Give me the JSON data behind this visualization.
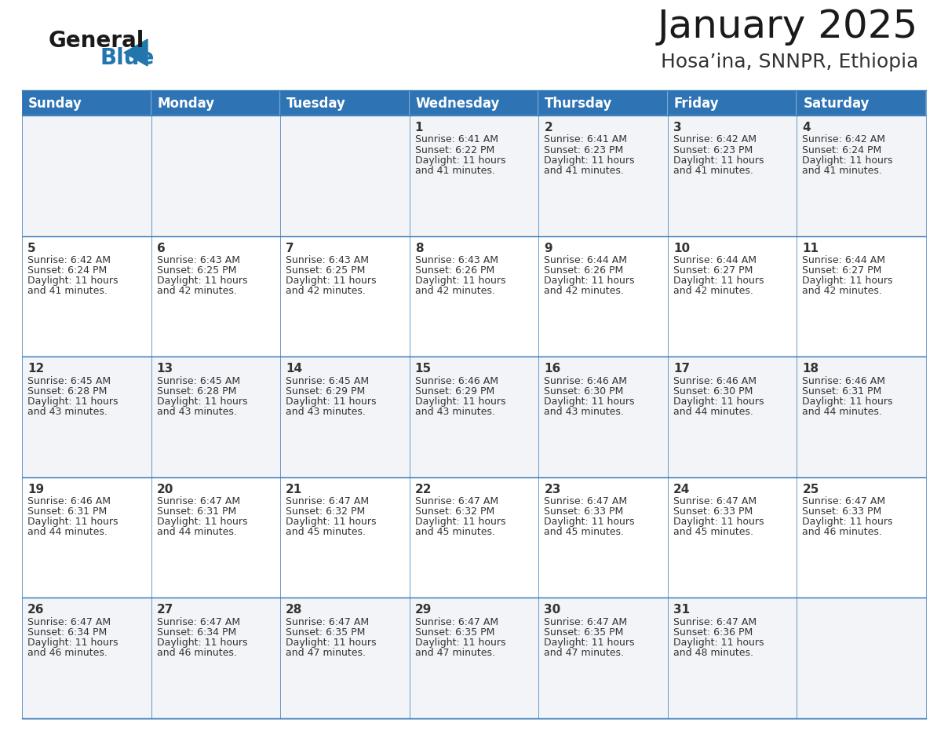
{
  "title": "January 2025",
  "subtitle": "Hosa’ina, SNNPR, Ethiopia",
  "logo_text_general": "General",
  "logo_text_blue": "Blue",
  "header_color": "#2E74B5",
  "header_text_color": "#FFFFFF",
  "cell_bg_even": "#F2F4F7",
  "cell_bg_odd": "#FFFFFF",
  "border_color": "#2E74B5",
  "text_color": "#333333",
  "days_of_week": [
    "Sunday",
    "Monday",
    "Tuesday",
    "Wednesday",
    "Thursday",
    "Friday",
    "Saturday"
  ],
  "title_fontsize": 36,
  "subtitle_fontsize": 18,
  "day_header_fontsize": 12,
  "cell_day_fontsize": 11,
  "cell_info_fontsize": 9.0,
  "calendar_data": [
    [
      {
        "day": "",
        "sunrise": "",
        "sunset": "",
        "daylight_h": "",
        "daylight_m": ""
      },
      {
        "day": "",
        "sunrise": "",
        "sunset": "",
        "daylight_h": "",
        "daylight_m": ""
      },
      {
        "day": "",
        "sunrise": "",
        "sunset": "",
        "daylight_h": "",
        "daylight_m": ""
      },
      {
        "day": "1",
        "sunrise": "6:41 AM",
        "sunset": "6:22 PM",
        "daylight_h": "11 hours",
        "daylight_m": "and 41 minutes."
      },
      {
        "day": "2",
        "sunrise": "6:41 AM",
        "sunset": "6:23 PM",
        "daylight_h": "11 hours",
        "daylight_m": "and 41 minutes."
      },
      {
        "day": "3",
        "sunrise": "6:42 AM",
        "sunset": "6:23 PM",
        "daylight_h": "11 hours",
        "daylight_m": "and 41 minutes."
      },
      {
        "day": "4",
        "sunrise": "6:42 AM",
        "sunset": "6:24 PM",
        "daylight_h": "11 hours",
        "daylight_m": "and 41 minutes."
      }
    ],
    [
      {
        "day": "5",
        "sunrise": "6:42 AM",
        "sunset": "6:24 PM",
        "daylight_h": "11 hours",
        "daylight_m": "and 41 minutes."
      },
      {
        "day": "6",
        "sunrise": "6:43 AM",
        "sunset": "6:25 PM",
        "daylight_h": "11 hours",
        "daylight_m": "and 42 minutes."
      },
      {
        "day": "7",
        "sunrise": "6:43 AM",
        "sunset": "6:25 PM",
        "daylight_h": "11 hours",
        "daylight_m": "and 42 minutes."
      },
      {
        "day": "8",
        "sunrise": "6:43 AM",
        "sunset": "6:26 PM",
        "daylight_h": "11 hours",
        "daylight_m": "and 42 minutes."
      },
      {
        "day": "9",
        "sunrise": "6:44 AM",
        "sunset": "6:26 PM",
        "daylight_h": "11 hours",
        "daylight_m": "and 42 minutes."
      },
      {
        "day": "10",
        "sunrise": "6:44 AM",
        "sunset": "6:27 PM",
        "daylight_h": "11 hours",
        "daylight_m": "and 42 minutes."
      },
      {
        "day": "11",
        "sunrise": "6:44 AM",
        "sunset": "6:27 PM",
        "daylight_h": "11 hours",
        "daylight_m": "and 42 minutes."
      }
    ],
    [
      {
        "day": "12",
        "sunrise": "6:45 AM",
        "sunset": "6:28 PM",
        "daylight_h": "11 hours",
        "daylight_m": "and 43 minutes."
      },
      {
        "day": "13",
        "sunrise": "6:45 AM",
        "sunset": "6:28 PM",
        "daylight_h": "11 hours",
        "daylight_m": "and 43 minutes."
      },
      {
        "day": "14",
        "sunrise": "6:45 AM",
        "sunset": "6:29 PM",
        "daylight_h": "11 hours",
        "daylight_m": "and 43 minutes."
      },
      {
        "day": "15",
        "sunrise": "6:46 AM",
        "sunset": "6:29 PM",
        "daylight_h": "11 hours",
        "daylight_m": "and 43 minutes."
      },
      {
        "day": "16",
        "sunrise": "6:46 AM",
        "sunset": "6:30 PM",
        "daylight_h": "11 hours",
        "daylight_m": "and 43 minutes."
      },
      {
        "day": "17",
        "sunrise": "6:46 AM",
        "sunset": "6:30 PM",
        "daylight_h": "11 hours",
        "daylight_m": "and 44 minutes."
      },
      {
        "day": "18",
        "sunrise": "6:46 AM",
        "sunset": "6:31 PM",
        "daylight_h": "11 hours",
        "daylight_m": "and 44 minutes."
      }
    ],
    [
      {
        "day": "19",
        "sunrise": "6:46 AM",
        "sunset": "6:31 PM",
        "daylight_h": "11 hours",
        "daylight_m": "and 44 minutes."
      },
      {
        "day": "20",
        "sunrise": "6:47 AM",
        "sunset": "6:31 PM",
        "daylight_h": "11 hours",
        "daylight_m": "and 44 minutes."
      },
      {
        "day": "21",
        "sunrise": "6:47 AM",
        "sunset": "6:32 PM",
        "daylight_h": "11 hours",
        "daylight_m": "and 45 minutes."
      },
      {
        "day": "22",
        "sunrise": "6:47 AM",
        "sunset": "6:32 PM",
        "daylight_h": "11 hours",
        "daylight_m": "and 45 minutes."
      },
      {
        "day": "23",
        "sunrise": "6:47 AM",
        "sunset": "6:33 PM",
        "daylight_h": "11 hours",
        "daylight_m": "and 45 minutes."
      },
      {
        "day": "24",
        "sunrise": "6:47 AM",
        "sunset": "6:33 PM",
        "daylight_h": "11 hours",
        "daylight_m": "and 45 minutes."
      },
      {
        "day": "25",
        "sunrise": "6:47 AM",
        "sunset": "6:33 PM",
        "daylight_h": "11 hours",
        "daylight_m": "and 46 minutes."
      }
    ],
    [
      {
        "day": "26",
        "sunrise": "6:47 AM",
        "sunset": "6:34 PM",
        "daylight_h": "11 hours",
        "daylight_m": "and 46 minutes."
      },
      {
        "day": "27",
        "sunrise": "6:47 AM",
        "sunset": "6:34 PM",
        "daylight_h": "11 hours",
        "daylight_m": "and 46 minutes."
      },
      {
        "day": "28",
        "sunrise": "6:47 AM",
        "sunset": "6:35 PM",
        "daylight_h": "11 hours",
        "daylight_m": "and 47 minutes."
      },
      {
        "day": "29",
        "sunrise": "6:47 AM",
        "sunset": "6:35 PM",
        "daylight_h": "11 hours",
        "daylight_m": "and 47 minutes."
      },
      {
        "day": "30",
        "sunrise": "6:47 AM",
        "sunset": "6:35 PM",
        "daylight_h": "11 hours",
        "daylight_m": "and 47 minutes."
      },
      {
        "day": "31",
        "sunrise": "6:47 AM",
        "sunset": "6:36 PM",
        "daylight_h": "11 hours",
        "daylight_m": "and 48 minutes."
      },
      {
        "day": "",
        "sunrise": "",
        "sunset": "",
        "daylight_h": "",
        "daylight_m": ""
      }
    ]
  ]
}
